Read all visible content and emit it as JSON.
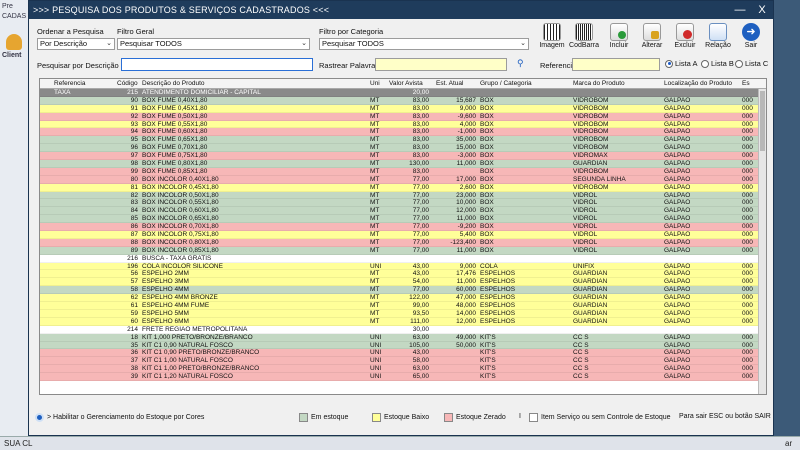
{
  "background": {
    "left_labels": [
      "Pre",
      "CADAS",
      "Client"
    ],
    "statusbar_left": "SUA CL",
    "statusbar_right": "ar"
  },
  "window": {
    "title": ">>>  PESQUISA DOS PRODUTOS & SERVIÇOS CADASTRADOS  <<<",
    "min_glyph": "—",
    "close_glyph": "X"
  },
  "filters": {
    "ordenar_label": "Ordenar a Pesquisa",
    "ordenar_value": "Por Descrição",
    "filtro_geral_label": "Filtro Geral",
    "filtro_geral_value": "Pesquisar TODOS",
    "filtro_categoria_label": "Filtro por Categoria",
    "filtro_categoria_value": "Pesquisar TODOS",
    "pesquisar_label": "Pesquisar por Descrição",
    "pesquisar_value": "",
    "rastrear_label": "Rastrear Palavras",
    "rastrear_value": "",
    "referencia_label": "Referencia",
    "referencia_value": ""
  },
  "toolbar": {
    "imagem": "Imagem",
    "codbarra": "CodBarra",
    "incluir": "Incluir",
    "alterar": "Alterar",
    "excluir": "Excluir",
    "relacao": "Relação",
    "sair": "Sair"
  },
  "lists": {
    "a": "Lista A",
    "b": "Lista B",
    "c": "Lista C",
    "selected": "a"
  },
  "columns": {
    "ref": "Referencia",
    "cod": "Código",
    "desc": "Descrição do Produto",
    "uni": "Uni",
    "valor": "Valor Avista",
    "est": "Est. Atual",
    "grupo": "Grupo / Categoria",
    "marca": "Marca do Produto",
    "local": "Localização do Produto",
    "extra": "Es"
  },
  "rows": [
    {
      "c": "sel",
      "ref": "TAXA",
      "cod": "215",
      "desc": "ATENDIMENTO DOMICILIAR - CAPITAL",
      "uni": "",
      "valor": "20,00",
      "est": "",
      "grupo": "",
      "marca": "",
      "local": "",
      "x": ""
    },
    {
      "c": "g",
      "ref": "",
      "cod": "90",
      "desc": "BOX FUME 0,40X1,80",
      "uni": "MT",
      "valor": "83,00",
      "est": "15,687",
      "grupo": "BOX",
      "marca": "VIDROBOM",
      "local": "GALPAO",
      "x": "000"
    },
    {
      "c": "y",
      "ref": "",
      "cod": "91",
      "desc": "BOX FUME 0,45X1,80",
      "uni": "MT",
      "valor": "83,00",
      "est": "9,000",
      "grupo": "BOX",
      "marca": "VIDROBOM",
      "local": "GALPAO",
      "x": "000"
    },
    {
      "c": "r",
      "ref": "",
      "cod": "92",
      "desc": "BOX FUME 0,50X1,80",
      "uni": "MT",
      "valor": "83,00",
      "est": "-9,600",
      "grupo": "BOX",
      "marca": "VIDROBOM",
      "local": "GALPAO",
      "x": "000"
    },
    {
      "c": "y",
      "ref": "",
      "cod": "93",
      "desc": "BOX FUME 0,55X1,80",
      "uni": "MT",
      "valor": "83,00",
      "est": "4,000",
      "grupo": "BOX",
      "marca": "VIDROBOM",
      "local": "GALPAO",
      "x": "000"
    },
    {
      "c": "r",
      "ref": "",
      "cod": "94",
      "desc": "BOX FUME 0,60X1,80",
      "uni": "MT",
      "valor": "83,00",
      "est": "-1,000",
      "grupo": "BOX",
      "marca": "VIDROBOM",
      "local": "GALPAO",
      "x": "000"
    },
    {
      "c": "g",
      "ref": "",
      "cod": "95",
      "desc": "BOX FUME 0,65X1,80",
      "uni": "MT",
      "valor": "83,00",
      "est": "35,000",
      "grupo": "BOX",
      "marca": "VIDROBOM",
      "local": "GALPAO",
      "x": "000"
    },
    {
      "c": "g",
      "ref": "",
      "cod": "96",
      "desc": "BOX FUME 0,70X1,80",
      "uni": "MT",
      "valor": "83,00",
      "est": "15,000",
      "grupo": "BOX",
      "marca": "VIDROBOM",
      "local": "GALPAO",
      "x": "000"
    },
    {
      "c": "r",
      "ref": "",
      "cod": "97",
      "desc": "BOX FUME 0,75X1,80",
      "uni": "MT",
      "valor": "83,00",
      "est": "-3,000",
      "grupo": "BOX",
      "marca": "VIDROMAX",
      "local": "GALPAO",
      "x": "000"
    },
    {
      "c": "g",
      "ref": "",
      "cod": "98",
      "desc": "BOX FUME 0,80X1,80",
      "uni": "MT",
      "valor": "130,00",
      "est": "11,000",
      "grupo": "BOX",
      "marca": "GUARDIAN",
      "local": "GALPAO",
      "x": "000"
    },
    {
      "c": "r",
      "ref": "",
      "cod": "99",
      "desc": "BOX FUME 0,85X1,80",
      "uni": "MT",
      "valor": "83,00",
      "est": "",
      "grupo": "BOX",
      "marca": "VIDROBOM",
      "local": "GALPAO",
      "x": "000"
    },
    {
      "c": "r",
      "ref": "",
      "cod": "80",
      "desc": "BOX INCOLOR 0,40X1,80",
      "uni": "MT",
      "valor": "77,00",
      "est": "17,000",
      "grupo": "BOX",
      "marca": "SEGUNDA LINHA",
      "local": "GALPAO",
      "x": "000"
    },
    {
      "c": "y",
      "ref": "",
      "cod": "81",
      "desc": "BOX INCOLOR 0,45X1,80",
      "uni": "MT",
      "valor": "77,00",
      "est": "2,600",
      "grupo": "BOX",
      "marca": "VIDROBOM",
      "local": "GALPAO",
      "x": "000"
    },
    {
      "c": "g",
      "ref": "",
      "cod": "82",
      "desc": "BOX INCOLOR 0,50X1,80",
      "uni": "MT",
      "valor": "77,00",
      "est": "23,000",
      "grupo": "BOX",
      "marca": "VIDROL",
      "local": "GALPAO",
      "x": "000"
    },
    {
      "c": "g",
      "ref": "",
      "cod": "83",
      "desc": "BOX INCOLOR 0,55X1,80",
      "uni": "MT",
      "valor": "77,00",
      "est": "10,000",
      "grupo": "BOX",
      "marca": "VIDROL",
      "local": "GALPAO",
      "x": "000"
    },
    {
      "c": "g",
      "ref": "",
      "cod": "84",
      "desc": "BOX INCOLOR 0,60X1,80",
      "uni": "MT",
      "valor": "77,00",
      "est": "12,000",
      "grupo": "BOX",
      "marca": "VIDROL",
      "local": "GALPAO",
      "x": "000"
    },
    {
      "c": "g",
      "ref": "",
      "cod": "85",
      "desc": "BOX INCOLOR 0,65X1,80",
      "uni": "MT",
      "valor": "77,00",
      "est": "11,000",
      "grupo": "BOX",
      "marca": "VIDROL",
      "local": "GALPAO",
      "x": "000"
    },
    {
      "c": "r",
      "ref": "",
      "cod": "86",
      "desc": "BOX INCOLOR 0,70X1,80",
      "uni": "MT",
      "valor": "77,00",
      "est": "-9,200",
      "grupo": "BOX",
      "marca": "VIDROL",
      "local": "GALPAO",
      "x": "000"
    },
    {
      "c": "y",
      "ref": "",
      "cod": "87",
      "desc": "BOX INCOLOR 0,75X1,80",
      "uni": "MT",
      "valor": "77,00",
      "est": "5,400",
      "grupo": "BOX",
      "marca": "VIDROL",
      "local": "GALPAO",
      "x": "000"
    },
    {
      "c": "r",
      "ref": "",
      "cod": "88",
      "desc": "BOX INCOLOR 0,80X1,80",
      "uni": "MT",
      "valor": "77,00",
      "est": "-123,400",
      "grupo": "BOX",
      "marca": "VIDROL",
      "local": "GALPAO",
      "x": "000"
    },
    {
      "c": "g",
      "ref": "",
      "cod": "89",
      "desc": "BOX INCOLOR 0,85X1,80",
      "uni": "MT",
      "valor": "77,00",
      "est": "11,000",
      "grupo": "BOX",
      "marca": "VIDROL",
      "local": "GALPAO",
      "x": "000"
    },
    {
      "c": "w",
      "ref": "",
      "cod": "216",
      "desc": "BUSCA - TAXA GRATIS",
      "uni": "",
      "valor": "",
      "est": "",
      "grupo": "",
      "marca": "",
      "local": "",
      "x": ""
    },
    {
      "c": "y",
      "ref": "",
      "cod": "196",
      "desc": "COLA INCOLOR SILICONE",
      "uni": "UNI",
      "valor": "43,00",
      "est": "9,000",
      "grupo": "COLA",
      "marca": "UNIFIX",
      "local": "GALPAO",
      "x": "000"
    },
    {
      "c": "y",
      "ref": "",
      "cod": "56",
      "desc": "ESPELHO 2MM",
      "uni": "MT",
      "valor": "43,00",
      "est": "17,476",
      "grupo": "ESPELHOS",
      "marca": "GUARDIAN",
      "local": "GALPAO",
      "x": "000"
    },
    {
      "c": "y",
      "ref": "",
      "cod": "57",
      "desc": "ESPELHO 3MM",
      "uni": "MT",
      "valor": "54,00",
      "est": "11,000",
      "grupo": "ESPELHOS",
      "marca": "GUARDIAN",
      "local": "GALPAO",
      "x": "000"
    },
    {
      "c": "g",
      "ref": "",
      "cod": "58",
      "desc": "ESPELHO 4MM",
      "uni": "MT",
      "valor": "77,00",
      "est": "60,000",
      "grupo": "ESPELHOS",
      "marca": "GUARDIAN",
      "local": "GALPAO",
      "x": "000"
    },
    {
      "c": "y",
      "ref": "",
      "cod": "62",
      "desc": "ESPELHO 4MM BRONZE",
      "uni": "MT",
      "valor": "122,00",
      "est": "47,000",
      "grupo": "ESPELHOS",
      "marca": "GUARDIAN",
      "local": "GALPAO",
      "x": "000"
    },
    {
      "c": "y",
      "ref": "",
      "cod": "61",
      "desc": "ESPELHO 4MM FUME",
      "uni": "MT",
      "valor": "99,00",
      "est": "48,000",
      "grupo": "ESPELHOS",
      "marca": "GUARDIAN",
      "local": "GALPAO",
      "x": "000"
    },
    {
      "c": "y",
      "ref": "",
      "cod": "59",
      "desc": "ESPELHO 5MM",
      "uni": "MT",
      "valor": "93,50",
      "est": "14,000",
      "grupo": "ESPELHOS",
      "marca": "GUARDIAN",
      "local": "GALPAO",
      "x": "000"
    },
    {
      "c": "y",
      "ref": "",
      "cod": "60",
      "desc": "ESPELHO 6MM",
      "uni": "MT",
      "valor": "111,00",
      "est": "12,000",
      "grupo": "ESPELHOS",
      "marca": "GUARDIAN",
      "local": "GALPAO",
      "x": "000"
    },
    {
      "c": "w",
      "ref": "",
      "cod": "214",
      "desc": "FRETE REGIAO METROPOLITANA",
      "uni": "",
      "valor": "30,00",
      "est": "",
      "grupo": "",
      "marca": "",
      "local": "",
      "x": ""
    },
    {
      "c": "g",
      "ref": "",
      "cod": "18",
      "desc": "KIT 1,000 PRETO/BRONZE/BRANCO",
      "uni": "UNI",
      "valor": "63,00",
      "est": "49,000",
      "grupo": "KIT'S",
      "marca": "CC S",
      "local": "GALPAO",
      "x": "000"
    },
    {
      "c": "g",
      "ref": "",
      "cod": "35",
      "desc": "KIT C1  0,90 NATURAL FOSCO",
      "uni": "UNI",
      "valor": "105,00",
      "est": "50,000",
      "grupo": "KIT'S",
      "marca": "CC S",
      "local": "GALPAO",
      "x": "000"
    },
    {
      "c": "r",
      "ref": "",
      "cod": "36",
      "desc": "KIT C1  0,90 PRETO/BRONZE/BRANCO",
      "uni": "UNI",
      "valor": "43,00",
      "est": "",
      "grupo": "KIT'S",
      "marca": "CC S",
      "local": "GALPAO",
      "x": "000"
    },
    {
      "c": "r",
      "ref": "",
      "cod": "37",
      "desc": "KIT C1 1,00 NATURAL FOSCO",
      "uni": "UNI",
      "valor": "58,00",
      "est": "",
      "grupo": "KIT'S",
      "marca": "CC S",
      "local": "GALPAO",
      "x": "000"
    },
    {
      "c": "r",
      "ref": "",
      "cod": "38",
      "desc": "KIT C1 1,00 PRETO/BRONZE/BRANCO",
      "uni": "UNI",
      "valor": "63,00",
      "est": "",
      "grupo": "KIT'S",
      "marca": "CC S",
      "local": "GALPAO",
      "x": "000"
    },
    {
      "c": "r",
      "ref": "",
      "cod": "39",
      "desc": "KIT C1 1,20 NATURAL FOSCO",
      "uni": "UNI",
      "valor": "65,00",
      "est": "",
      "grupo": "KIT'S",
      "marca": "CC S",
      "local": "GALPAO",
      "x": "000"
    }
  ],
  "legend": {
    "habilitar": "> Habilitar o Gerenciamento do Estoque por Cores",
    "em_estoque": "Em estoque",
    "estoque_baixo": "Estoque Baixo",
    "estoque_zerado": "Estoque Zerado",
    "separator": "I",
    "sem_controle": "Item Serviço ou sem Controle de Estoque",
    "sair_hint": "Para sair ESC ou botão SAIR"
  },
  "colors": {
    "em_estoque": "#c3d8c3",
    "estoque_baixo": "#ffff99",
    "estoque_zerado": "#f7b7b7",
    "sem_controle": "#ffffff",
    "title_bar": "#1f3c5c"
  }
}
